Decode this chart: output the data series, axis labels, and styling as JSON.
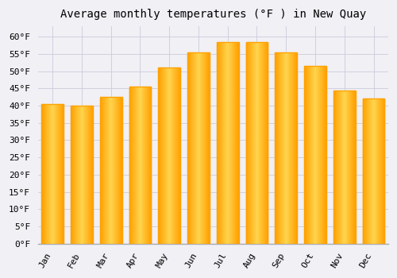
{
  "title": "Average monthly temperatures (°F ) in New Quay",
  "months": [
    "Jan",
    "Feb",
    "Mar",
    "Apr",
    "May",
    "Jun",
    "Jul",
    "Aug",
    "Sep",
    "Oct",
    "Nov",
    "Dec"
  ],
  "values": [
    40.5,
    40.0,
    42.5,
    45.5,
    51.0,
    55.5,
    58.5,
    58.5,
    55.5,
    51.5,
    44.5,
    42.0
  ],
  "bar_color_center": "#FFD54F",
  "bar_color_edge": "#FFA000",
  "background_color": "#f0f0f5",
  "grid_color": "#ccccdd",
  "ylim": [
    0,
    63
  ],
  "yticks": [
    0,
    5,
    10,
    15,
    20,
    25,
    30,
    35,
    40,
    45,
    50,
    55,
    60
  ],
  "title_fontsize": 10,
  "tick_fontsize": 8,
  "tick_font_family": "monospace",
  "bar_width": 0.75
}
